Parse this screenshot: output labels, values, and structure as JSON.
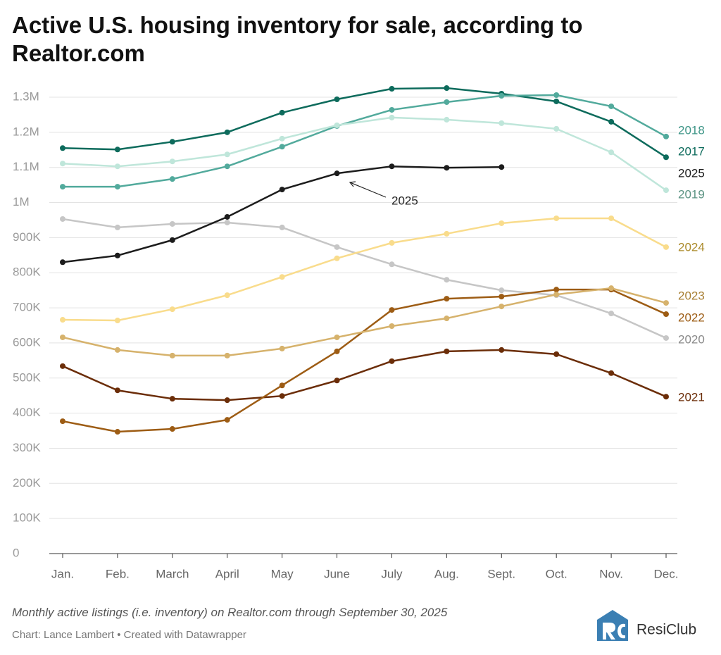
{
  "chart_data": {
    "type": "line",
    "title": "Active U.S. housing inventory for sale, according to Realtor.com",
    "subtitle": "Monthly active listings (i.e. inventory) on Realtor.com through September 30, 2025",
    "credit": "Chart: Lance Lambert • Created with Datawrapper",
    "logo": "ResiClub",
    "annotation": "2025",
    "categories": [
      "Jan.",
      "Feb.",
      "March",
      "April",
      "May",
      "June",
      "July",
      "Aug.",
      "Sept.",
      "Oct.",
      "Nov.",
      "Dec."
    ],
    "ylim": [
      0,
      1300000
    ],
    "yticks": [
      0,
      {
        "value": 100000,
        "label": "100K"
      },
      {
        "value": 200000,
        "label": "200K"
      },
      {
        "value": 300000,
        "label": "300K"
      },
      {
        "value": 400000,
        "label": "400K"
      },
      {
        "value": 500000,
        "label": "500K"
      },
      {
        "value": 600000,
        "label": "600K"
      },
      {
        "value": 700000,
        "label": "700K"
      },
      {
        "value": 800000,
        "label": "800K"
      },
      {
        "value": 900000,
        "label": "900K"
      },
      {
        "value": 1000000,
        "label": "1M"
      },
      {
        "value": 1100000,
        "label": "1.1M"
      },
      {
        "value": 1200000,
        "label": "1.2M"
      },
      {
        "value": 1300000,
        "label": "1.3M"
      }
    ],
    "grid": true,
    "series": [
      {
        "name": "2017",
        "color": "#0d6b5c",
        "label_color": "#0d6b5c",
        "values": [
          1155000,
          1151000,
          1173000,
          1200000,
          1256000,
          1294000,
          1324000,
          1326000,
          1310000,
          1288000,
          1230000,
          1129000
        ]
      },
      {
        "name": "2018",
        "color": "#52aa9c",
        "label_color": "#3f9688",
        "values": [
          1045000,
          1045000,
          1067000,
          1103000,
          1159000,
          1218000,
          1264000,
          1286000,
          1304000,
          1306000,
          1274000,
          1188000
        ]
      },
      {
        "name": "2019",
        "color": "#bfe6da",
        "label_color": "#5d9484",
        "values": [
          1111000,
          1103000,
          1117000,
          1137000,
          1182000,
          1220000,
          1242000,
          1236000,
          1226000,
          1210000,
          1143000,
          1035000
        ]
      },
      {
        "name": "2020",
        "color": "#c6c6c6",
        "label_color": "#8a8a8a",
        "values": [
          953000,
          929000,
          939000,
          943000,
          929000,
          873000,
          824000,
          780000,
          750000,
          736000,
          684000,
          614000
        ]
      },
      {
        "name": "2021",
        "color": "#6b2d08",
        "label_color": "#6b2d08",
        "values": [
          534000,
          465000,
          441000,
          437000,
          449000,
          493000,
          548000,
          576000,
          580000,
          568000,
          514000,
          447000
        ]
      },
      {
        "name": "2022",
        "color": "#9d5c14",
        "label_color": "#9d5c14",
        "values": [
          377000,
          347000,
          355000,
          381000,
          479000,
          576000,
          694000,
          726000,
          732000,
          752000,
          752000,
          682000
        ]
      },
      {
        "name": "2023",
        "color": "#d6b26c",
        "label_color": "#a77e32",
        "values": [
          616000,
          580000,
          564000,
          564000,
          584000,
          616000,
          648000,
          670000,
          704000,
          738000,
          756000,
          714000
        ]
      },
      {
        "name": "2024",
        "color": "#f9dc8c",
        "label_color": "#ab8a2a",
        "values": [
          666000,
          664000,
          696000,
          736000,
          788000,
          841000,
          885000,
          911000,
          941000,
          955000,
          955000,
          873000
        ]
      },
      {
        "name": "2025",
        "color": "#1c1c1c",
        "label_color": "#1c1c1c",
        "values": [
          830000,
          849000,
          893000,
          959000,
          1037000,
          1083000,
          1103000,
          1099000,
          1101000,
          null,
          null,
          null
        ]
      }
    ]
  }
}
